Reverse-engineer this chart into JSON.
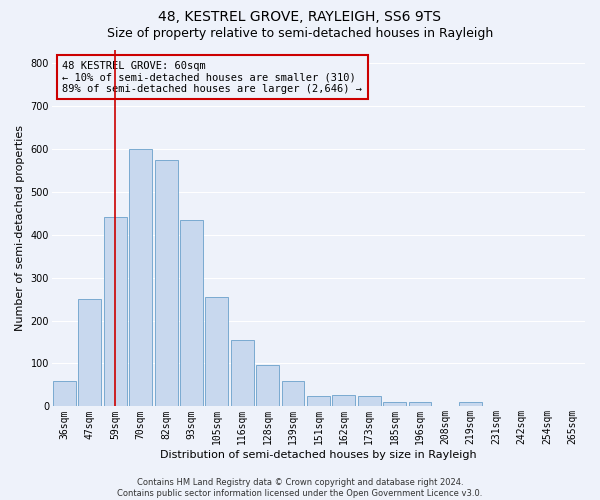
{
  "title": "48, KESTREL GROVE, RAYLEIGH, SS6 9TS",
  "subtitle": "Size of property relative to semi-detached houses in Rayleigh",
  "xlabel": "Distribution of semi-detached houses by size in Rayleigh",
  "ylabel": "Number of semi-detached properties",
  "categories": [
    "36sqm",
    "47sqm",
    "59sqm",
    "70sqm",
    "82sqm",
    "93sqm",
    "105sqm",
    "116sqm",
    "128sqm",
    "139sqm",
    "151sqm",
    "162sqm",
    "173sqm",
    "185sqm",
    "196sqm",
    "208sqm",
    "219sqm",
    "231sqm",
    "242sqm",
    "254sqm",
    "265sqm"
  ],
  "values": [
    60,
    250,
    440,
    600,
    575,
    435,
    255,
    155,
    97,
    60,
    25,
    27,
    25,
    10,
    10,
    0,
    10,
    0,
    0,
    0,
    0
  ],
  "bar_color": "#c8d8ee",
  "bar_edge_color": "#7aaad0",
  "highlight_bar_index": 2,
  "highlight_color": "#cc0000",
  "ylim": [
    0,
    830
  ],
  "yticks": [
    0,
    100,
    200,
    300,
    400,
    500,
    600,
    700,
    800
  ],
  "annotation_text": "48 KESTREL GROVE: 60sqm\n← 10% of semi-detached houses are smaller (310)\n89% of semi-detached houses are larger (2,646) →",
  "footer_line1": "Contains HM Land Registry data © Crown copyright and database right 2024.",
  "footer_line2": "Contains public sector information licensed under the Open Government Licence v3.0.",
  "background_color": "#eef2fa",
  "grid_color": "#ffffff",
  "title_fontsize": 10,
  "subtitle_fontsize": 9,
  "axis_label_fontsize": 8,
  "tick_fontsize": 7,
  "annotation_fontsize": 7.5,
  "footer_fontsize": 6
}
